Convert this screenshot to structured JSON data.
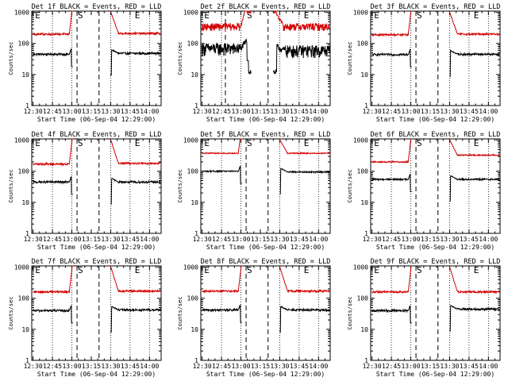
{
  "colors": {
    "events": "#000000",
    "lld": "#d40000",
    "background": "#ffffff"
  },
  "axis": {
    "ylabel": "Counts/sec",
    "xlabel": "Start Time (06-Sep-04 12:29:00)",
    "ytick_labels": [
      "1",
      "10",
      "100",
      "1000"
    ],
    "xtick_labels": [
      "12:30",
      "12:45",
      "13:00",
      "13:15",
      "13:30",
      "13:45",
      "14:00"
    ],
    "yscale": "log"
  },
  "chart_data": [
    {
      "type": "line",
      "title": "Det 1f BLACK = Events, RED = LLD",
      "xlim": [
        "12:29",
        "14:09"
      ],
      "ylim": [
        1,
        1100
      ],
      "y_minor_ticks": true,
      "dotted_at": [
        "12:45",
        "13:00",
        "13:30",
        "13:45",
        "14:00"
      ],
      "dashed_at": [
        "13:04",
        "13:21"
      ],
      "markers": [
        {
          "label": "E",
          "t": "12:31"
        },
        {
          "label": "S",
          "t": "13:04"
        },
        {
          "label": "E",
          "t": "13:48"
        }
      ],
      "red_baseline": 210,
      "black_baseline": 48,
      "red_noise": 0.07,
      "black_noise": 0.08,
      "red_pre_start": 200,
      "black_pre_start": 45,
      "spike_at": "13:00",
      "gap": [
        "13:01",
        "13:30"
      ],
      "recover": "13:30",
      "flat_until": "12:58"
    },
    {
      "type": "line",
      "title": "Det 2f BLACK = Events, RED = LLD",
      "xlim": [
        "12:29",
        "14:09"
      ],
      "ylim": [
        1,
        1100
      ],
      "y_minor_ticks": true,
      "dotted_at": [
        "12:45",
        "13:00",
        "13:30",
        "13:45",
        "14:00"
      ],
      "dashed_at": [
        "12:48",
        "13:21"
      ],
      "markers": [
        {
          "label": "E",
          "t": "12:31"
        },
        {
          "label": "S",
          "t": "13:04"
        },
        {
          "label": "E",
          "t": "13:48"
        }
      ],
      "red_baseline": 350,
      "black_baseline": 60,
      "red_noise": 0.28,
      "black_noise": 0.45,
      "red_pre_start": 350,
      "black_pre_start": 70,
      "spike_at": "13:05",
      "gap": [
        "13:08",
        "13:25"
      ],
      "recover": "13:27",
      "flat_until": "13:00"
    },
    {
      "type": "line",
      "title": "Det 3f BLACK = Events, RED = LLD",
      "xlim": [
        "12:29",
        "14:09"
      ],
      "ylim": [
        1,
        1100
      ],
      "y_minor_ticks": true,
      "dotted_at": [
        "12:45",
        "13:00",
        "13:30",
        "13:45",
        "14:00"
      ],
      "dashed_at": [
        "13:04",
        "13:21"
      ],
      "markers": [
        {
          "label": "E",
          "t": "12:31"
        },
        {
          "label": "S",
          "t": "13:04"
        },
        {
          "label": "E",
          "t": "13:48"
        }
      ],
      "red_baseline": 200,
      "black_baseline": 45,
      "red_noise": 0.07,
      "black_noise": 0.08,
      "red_pre_start": 190,
      "black_pre_start": 44,
      "spike_at": "13:00",
      "gap": [
        "13:01",
        "13:30"
      ],
      "recover": "13:30",
      "flat_until": "12:58"
    },
    {
      "type": "line",
      "title": "Det 4f BLACK = Events, RED = LLD",
      "xlim": [
        "12:29",
        "14:09"
      ],
      "ylim": [
        1,
        1100
      ],
      "y_minor_ticks": true,
      "dotted_at": [
        "12:45",
        "13:00",
        "13:30",
        "13:45",
        "14:00"
      ],
      "dashed_at": [
        "13:04",
        "13:21"
      ],
      "markers": [
        {
          "label": "E",
          "t": "12:31"
        },
        {
          "label": "S",
          "t": "13:04"
        },
        {
          "label": "E",
          "t": "13:48"
        }
      ],
      "red_baseline": 180,
      "black_baseline": 45,
      "red_noise": 0.07,
      "black_noise": 0.08,
      "red_pre_start": 170,
      "black_pre_start": 45,
      "spike_at": "13:00",
      "gap": [
        "13:01",
        "13:30"
      ],
      "recover": "13:30",
      "flat_until": "12:58"
    },
    {
      "type": "line",
      "title": "Det 5f BLACK = Events, RED = LLD",
      "xlim": [
        "12:29",
        "14:09"
      ],
      "ylim": [
        1,
        1100
      ],
      "y_minor_ticks": true,
      "dotted_at": [
        "12:45",
        "13:00",
        "13:30",
        "13:45",
        "14:00"
      ],
      "dashed_at": [
        "13:04",
        "13:21"
      ],
      "markers": [
        {
          "label": "E",
          "t": "12:31"
        },
        {
          "label": "S",
          "t": "13:04"
        },
        {
          "label": "E",
          "t": "13:48"
        }
      ],
      "red_baseline": 380,
      "black_baseline": 95,
      "red_noise": 0.04,
      "black_noise": 0.05,
      "red_pre_start": 380,
      "black_pre_start": 100,
      "spike_at": "13:00",
      "gap": [
        "13:01",
        "13:30"
      ],
      "recover": "13:30",
      "flat_until": "12:58"
    },
    {
      "type": "line",
      "title": "Det 6f BLACK = Events, RED = LLD",
      "xlim": [
        "12:29",
        "14:09"
      ],
      "ylim": [
        1,
        1100
      ],
      "y_minor_ticks": true,
      "dotted_at": [
        "12:45",
        "13:00",
        "13:30",
        "13:45",
        "14:00"
      ],
      "dashed_at": [
        "13:04",
        "13:21"
      ],
      "markers": [
        {
          "label": "E",
          "t": "12:31"
        },
        {
          "label": "S",
          "t": "13:04"
        },
        {
          "label": "E",
          "t": "13:48"
        }
      ],
      "red_baseline": 330,
      "black_baseline": 55,
      "red_noise": 0.05,
      "black_noise": 0.06,
      "red_pre_start": 200,
      "black_pre_start": 55,
      "spike_at": "13:00",
      "gap": [
        "13:01",
        "13:30"
      ],
      "recover": "13:30",
      "flat_until": "12:58"
    },
    {
      "type": "line",
      "title": "Det 7f BLACK = Events, RED = LLD",
      "xlim": [
        "12:29",
        "14:09"
      ],
      "ylim": [
        1,
        1100
      ],
      "y_minor_ticks": true,
      "dotted_at": [
        "12:45",
        "13:00",
        "13:30",
        "13:45",
        "14:00"
      ],
      "dashed_at": [
        "13:04",
        "13:21"
      ],
      "markers": [
        {
          "label": "E",
          "t": "12:31"
        },
        {
          "label": "S",
          "t": "13:04"
        },
        {
          "label": "E",
          "t": "13:48"
        }
      ],
      "red_baseline": 170,
      "black_baseline": 42,
      "red_noise": 0.07,
      "black_noise": 0.08,
      "red_pre_start": 160,
      "black_pre_start": 40,
      "spike_at": "13:00",
      "gap": [
        "13:01",
        "13:30"
      ],
      "recover": "13:30",
      "flat_until": "12:58"
    },
    {
      "type": "line",
      "title": "Det 8f BLACK = Events, RED = LLD",
      "xlim": [
        "12:29",
        "14:09"
      ],
      "ylim": [
        1,
        1100
      ],
      "y_minor_ticks": true,
      "dotted_at": [
        "12:45",
        "13:00",
        "13:30",
        "13:45",
        "14:00"
      ],
      "dashed_at": [
        "13:04",
        "13:21"
      ],
      "markers": [
        {
          "label": "E",
          "t": "12:31"
        },
        {
          "label": "S",
          "t": "13:04"
        },
        {
          "label": "E",
          "t": "13:48"
        }
      ],
      "red_baseline": 170,
      "black_baseline": 42,
      "red_noise": 0.07,
      "black_noise": 0.08,
      "red_pre_start": 170,
      "black_pre_start": 42,
      "spike_at": "13:00",
      "gap": [
        "13:01",
        "13:30"
      ],
      "recover": "13:30",
      "flat_until": "12:58"
    },
    {
      "type": "line",
      "title": "Det 9f BLACK = Events, RED = LLD",
      "xlim": [
        "12:29",
        "14:09"
      ],
      "ylim": [
        1,
        1100
      ],
      "y_minor_ticks": true,
      "dotted_at": [
        "12:45",
        "13:00",
        "13:30",
        "13:45",
        "14:00"
      ],
      "dashed_at": [
        "13:04",
        "13:21"
      ],
      "markers": [
        {
          "label": "E",
          "t": "12:31"
        },
        {
          "label": "S",
          "t": "13:04"
        },
        {
          "label": "E",
          "t": "13:48"
        }
      ],
      "red_baseline": 160,
      "black_baseline": 45,
      "red_noise": 0.07,
      "black_noise": 0.08,
      "red_pre_start": 160,
      "black_pre_start": 40,
      "spike_at": "13:00",
      "gap": [
        "13:01",
        "13:30"
      ],
      "recover": "13:30",
      "flat_until": "12:58"
    }
  ]
}
